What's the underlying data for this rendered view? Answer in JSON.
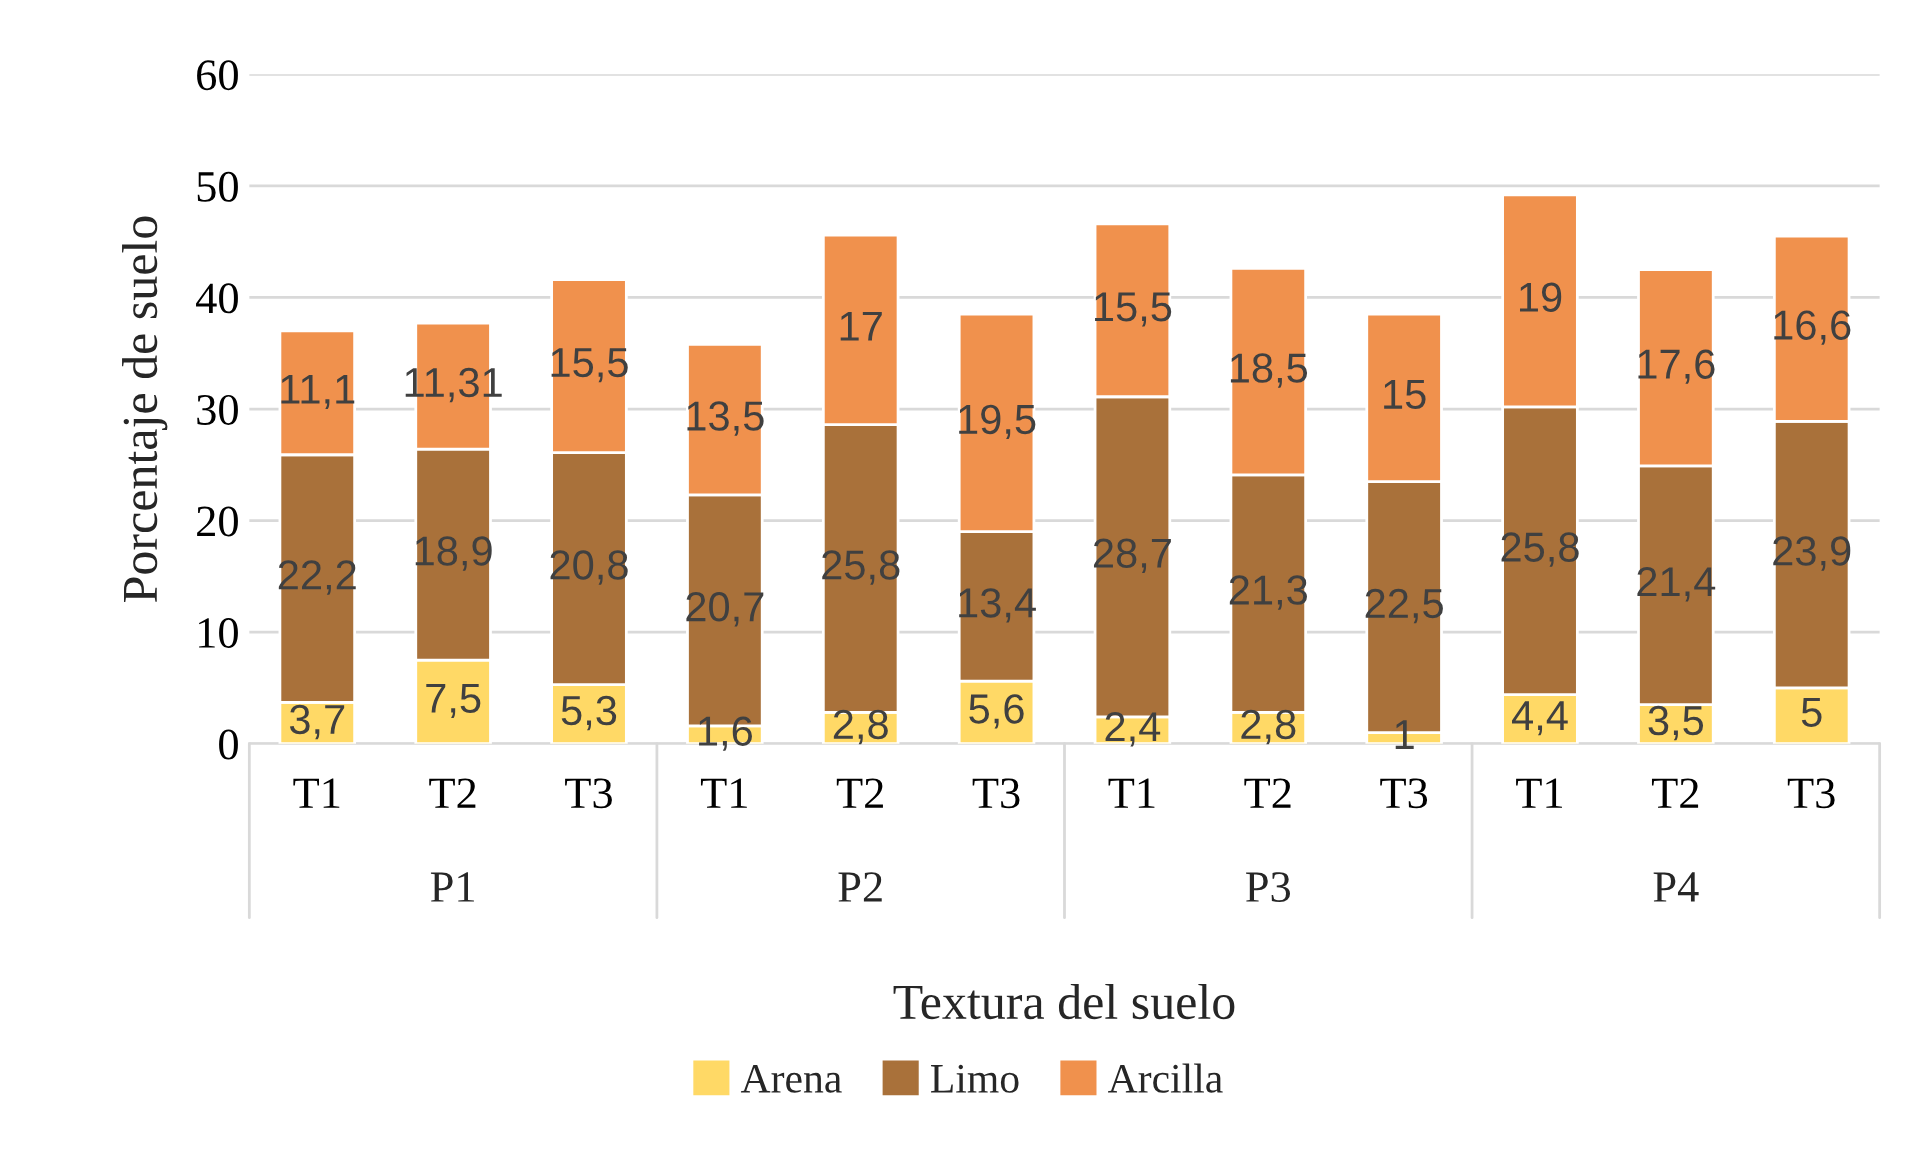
{
  "chart_data": {
    "type": "bar",
    "stacked": true,
    "xlabel": "Textura del suelo",
    "ylabel": "Porcentaje de suelo",
    "categories": [
      "T1",
      "T2",
      "T3",
      "T1",
      "T2",
      "T3",
      "T1",
      "T2",
      "T3",
      "T1",
      "T2",
      "T3"
    ],
    "annotations": [
      "P1",
      "P2",
      "P3",
      "P4"
    ],
    "series": [
      {
        "name": "Arena",
        "color": "#ffd966",
        "values": [
          3.7,
          7.5,
          5.3,
          1.6,
          2.8,
          5.6,
          2.4,
          2.8,
          1,
          4.4,
          3.5,
          5
        ],
        "value_labels": [
          "3,7",
          "7,5",
          "5,3",
          "1,6",
          "2,8",
          "5,6",
          "2,4",
          "2,8",
          "1",
          "4,4",
          "3,5",
          "5"
        ]
      },
      {
        "name": "Limo",
        "color": "#a9713a",
        "values": [
          22.2,
          18.9,
          20.8,
          20.7,
          25.8,
          13.4,
          28.7,
          21.3,
          22.5,
          25.8,
          21.4,
          23.9
        ],
        "value_labels": [
          "22,2",
          "18,9",
          "20,8",
          "20,7",
          "25,8",
          "13,4",
          "28,7",
          "21,3",
          "22,5",
          "25,8",
          "21,4",
          "23,9"
        ]
      },
      {
        "name": "Arcilla",
        "color": "#f0914d",
        "values": [
          11.1,
          11.31,
          15.5,
          13.5,
          17,
          19.5,
          15.5,
          18.5,
          15,
          19,
          17.6,
          16.6
        ],
        "value_labels": [
          "11,1",
          "11,31",
          "15,5",
          "13,5",
          "17",
          "19,5",
          "15,5",
          "18,5",
          "15",
          "19",
          "17,6",
          "16,6"
        ]
      }
    ],
    "ylim": [
      0,
      60
    ],
    "yticks": [
      0,
      10,
      20,
      30,
      40,
      50,
      60
    ],
    "grid": "y",
    "legend": "bottom"
  }
}
